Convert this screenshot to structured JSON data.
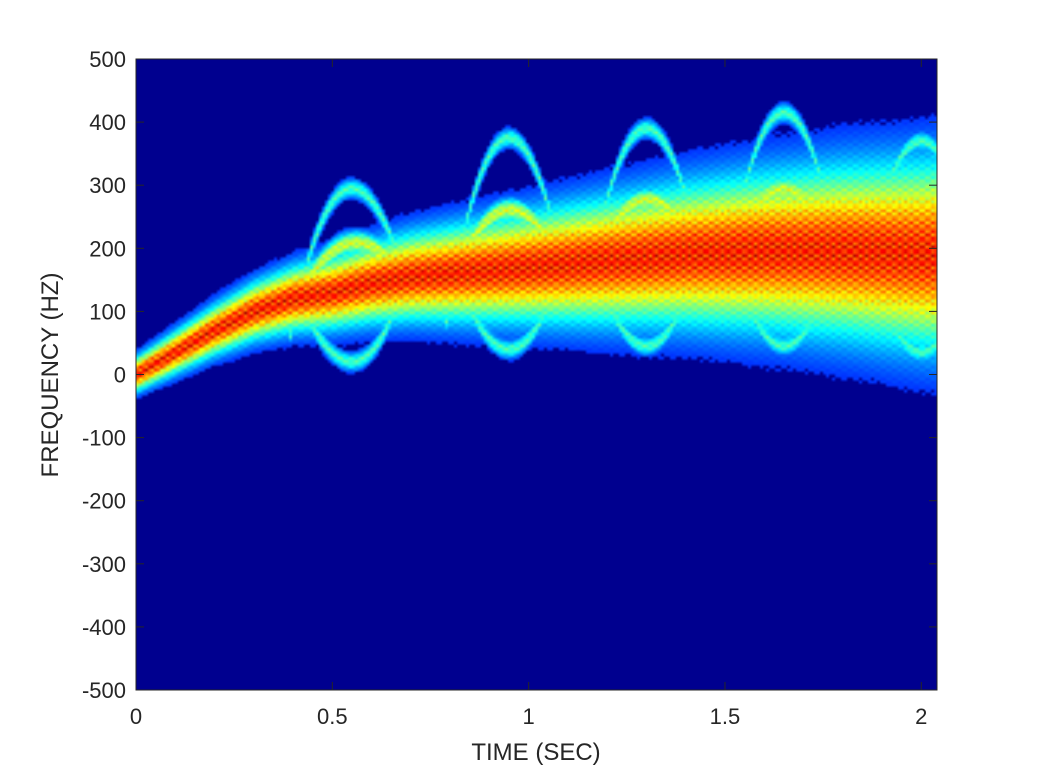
{
  "chart_data": {
    "type": "heatmap",
    "title": "",
    "xlabel": "TIME (SEC)",
    "ylabel": "FREQUENCY (HZ)",
    "xlim": [
      0,
      2.04
    ],
    "ylim": [
      -500,
      500
    ],
    "xticks": [
      0,
      0.5,
      1,
      1.5,
      2
    ],
    "xtick_labels": [
      "0",
      "0.5",
      "1",
      "1.5",
      "2"
    ],
    "yticks": [
      500,
      400,
      300,
      200,
      100,
      0,
      -100,
      -200,
      -300,
      -400,
      -500
    ],
    "ytick_labels": [
      "500",
      "400",
      "300",
      "200",
      "100",
      "0",
      "-100",
      "-200",
      "-300",
      "-400",
      "-500"
    ],
    "colormap": "jet",
    "background_color": "#00008f",
    "grid": false,
    "ridges": [
      {
        "description": "dominant time-frequency ridge",
        "t": [
          0.0,
          0.1,
          0.2,
          0.3,
          0.4,
          0.5,
          0.6,
          0.7,
          0.8,
          0.9,
          1.0,
          1.2,
          1.4,
          1.6,
          1.8,
          2.0
        ],
        "f": [
          0,
          35,
          70,
          100,
          120,
          130,
          145,
          155,
          160,
          165,
          170,
          180,
          190,
          195,
          195,
          190
        ]
      }
    ],
    "arch_tops": [
      {
        "t": 0.55,
        "f_top": 295,
        "f_bottom": 20
      },
      {
        "t": 0.95,
        "f_top": 375,
        "f_bottom": 40
      },
      {
        "t": 1.3,
        "f_top": 390,
        "f_bottom": 45
      },
      {
        "t": 1.65,
        "f_top": 415,
        "f_bottom": 45
      },
      {
        "t": 2.0,
        "f_top": 370,
        "f_bottom": 35
      }
    ]
  }
}
